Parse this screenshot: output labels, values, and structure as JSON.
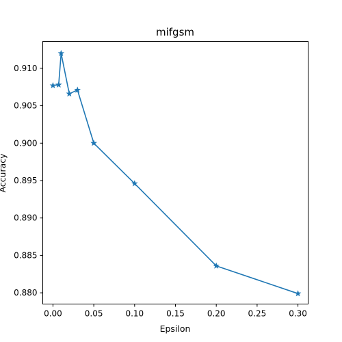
{
  "chart_data": {
    "type": "line",
    "title": "mifgsm",
    "xlabel": "Epsilon",
    "ylabel": "Accuracy",
    "xlim": [
      -0.0125,
      0.3125
    ],
    "ylim": [
      0.8785,
      0.9136
    ],
    "xticks": [
      "0.00",
      "0.05",
      "0.10",
      "0.15",
      "0.20",
      "0.25",
      "0.30"
    ],
    "yticks": [
      "0.880",
      "0.885",
      "0.890",
      "0.895",
      "0.900",
      "0.905",
      "0.910"
    ],
    "grid": false,
    "series": [
      {
        "color": "#1f77b4",
        "marker": "star",
        "x": [
          0.0,
          0.007,
          0.01,
          0.02,
          0.03,
          0.05,
          0.1,
          0.2,
          0.3
        ],
        "y": [
          0.9077,
          0.9078,
          0.912,
          0.9066,
          0.9071,
          0.9,
          0.8946,
          0.8836,
          0.8799
        ]
      }
    ]
  }
}
